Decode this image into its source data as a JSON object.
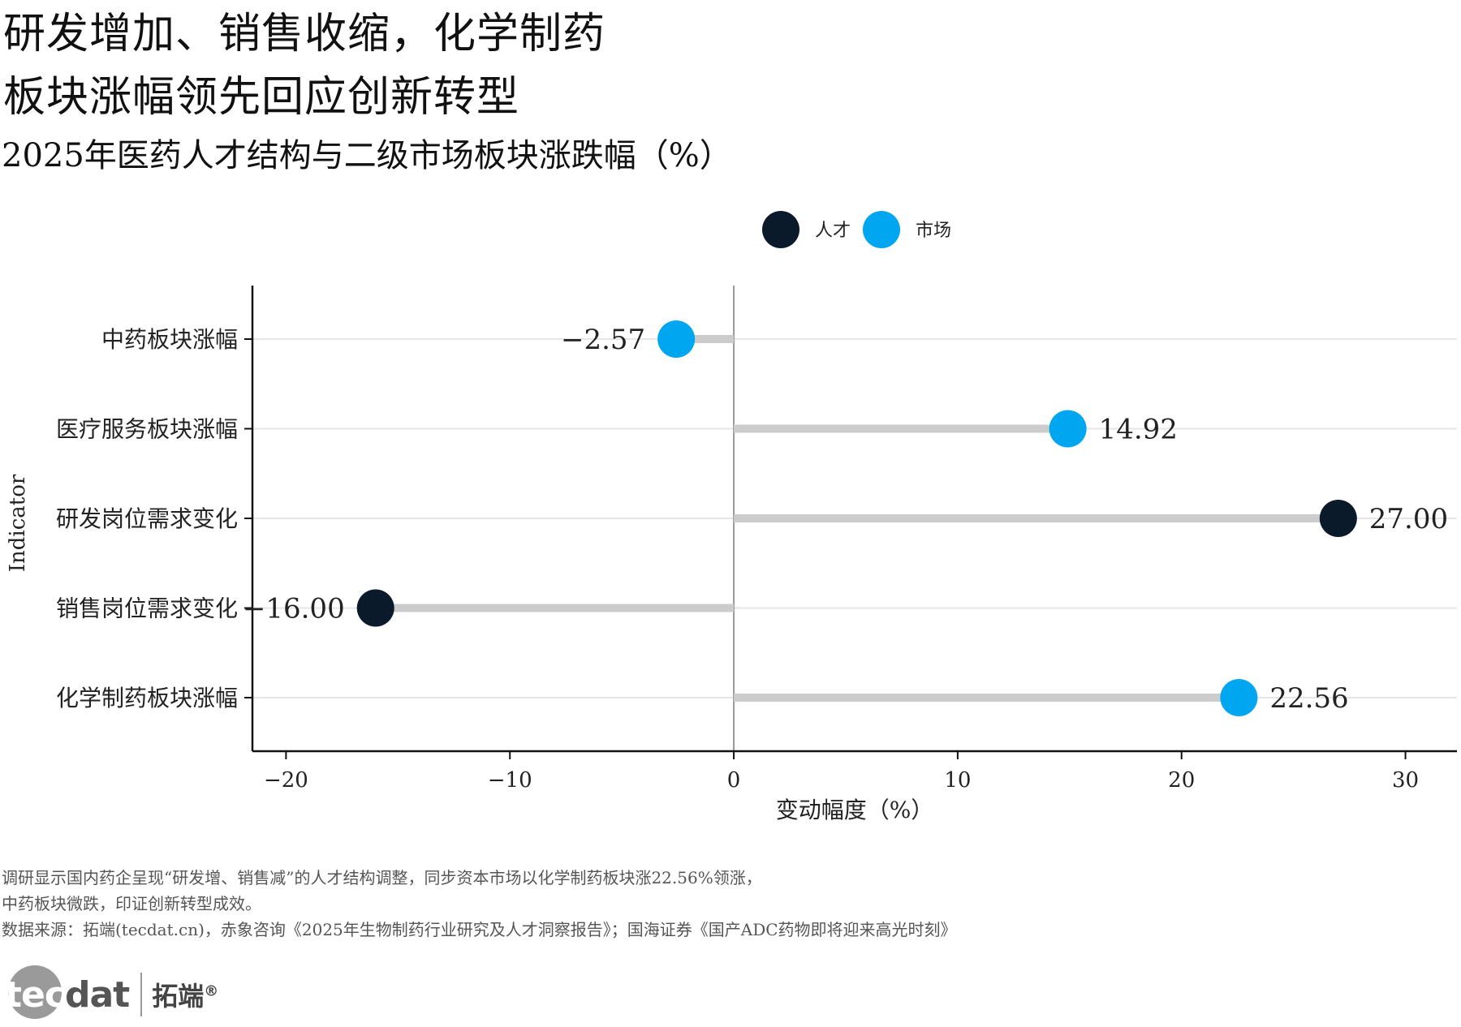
{
  "title_line1": "研发增加、销售收缩，化学制药",
  "title_line2": "板块涨幅领先回应创新转型",
  "subtitle": "2025年医药人才结构与二级市场板块涨跌幅（%）",
  "notes": [
    "调研显示国内药企呈现“研发增、销售减”的人才结构调整，同步资本市场以化学制药板块涨22.56%领涨，",
    "中药板块微跌，印证创新转型成效。",
    "数据来源：拓端(tecdat.cn)，赤象咨询《2025年生物制药行业研究及人才洞察报告》；国海证券《国产ADC药物即将迎来高光时刻》"
  ],
  "logo": {
    "word_a": "tec",
    "word_b": "dat",
    "cn": "拓端",
    "mark": "®"
  },
  "chart_data": {
    "type": "lollipop",
    "xlabel": "变动幅度（%）",
    "ylabel": "Indicator",
    "xlim": [
      -21.5,
      32.3
    ],
    "xticks": [
      -20,
      -10,
      0,
      10,
      20,
      30
    ],
    "grid": "horizontal",
    "legend_position": "top",
    "legend": [
      {
        "name": "人才",
        "color": "#0b1a2b"
      },
      {
        "name": "市场",
        "color": "#00a6f0"
      }
    ],
    "stem_color": "#cccccc",
    "categories": [
      "中药板块涨幅",
      "医疗服务板块涨幅",
      "研发岗位需求变化",
      "销售岗位需求变化",
      "化学制药板块涨幅"
    ],
    "points": [
      {
        "category": "中药板块涨幅",
        "value": -2.57,
        "label": "-2.57",
        "group": "市场"
      },
      {
        "category": "医疗服务板块涨幅",
        "value": 14.92,
        "label": "14.92",
        "group": "市场"
      },
      {
        "category": "研发岗位需求变化",
        "value": 27.0,
        "label": "27.00",
        "group": "人才"
      },
      {
        "category": "销售岗位需求变化",
        "value": -16.0,
        "label": "-16.00",
        "group": "人才"
      },
      {
        "category": "化学制药板块涨幅",
        "value": 22.56,
        "label": "22.56",
        "group": "市场"
      }
    ]
  }
}
